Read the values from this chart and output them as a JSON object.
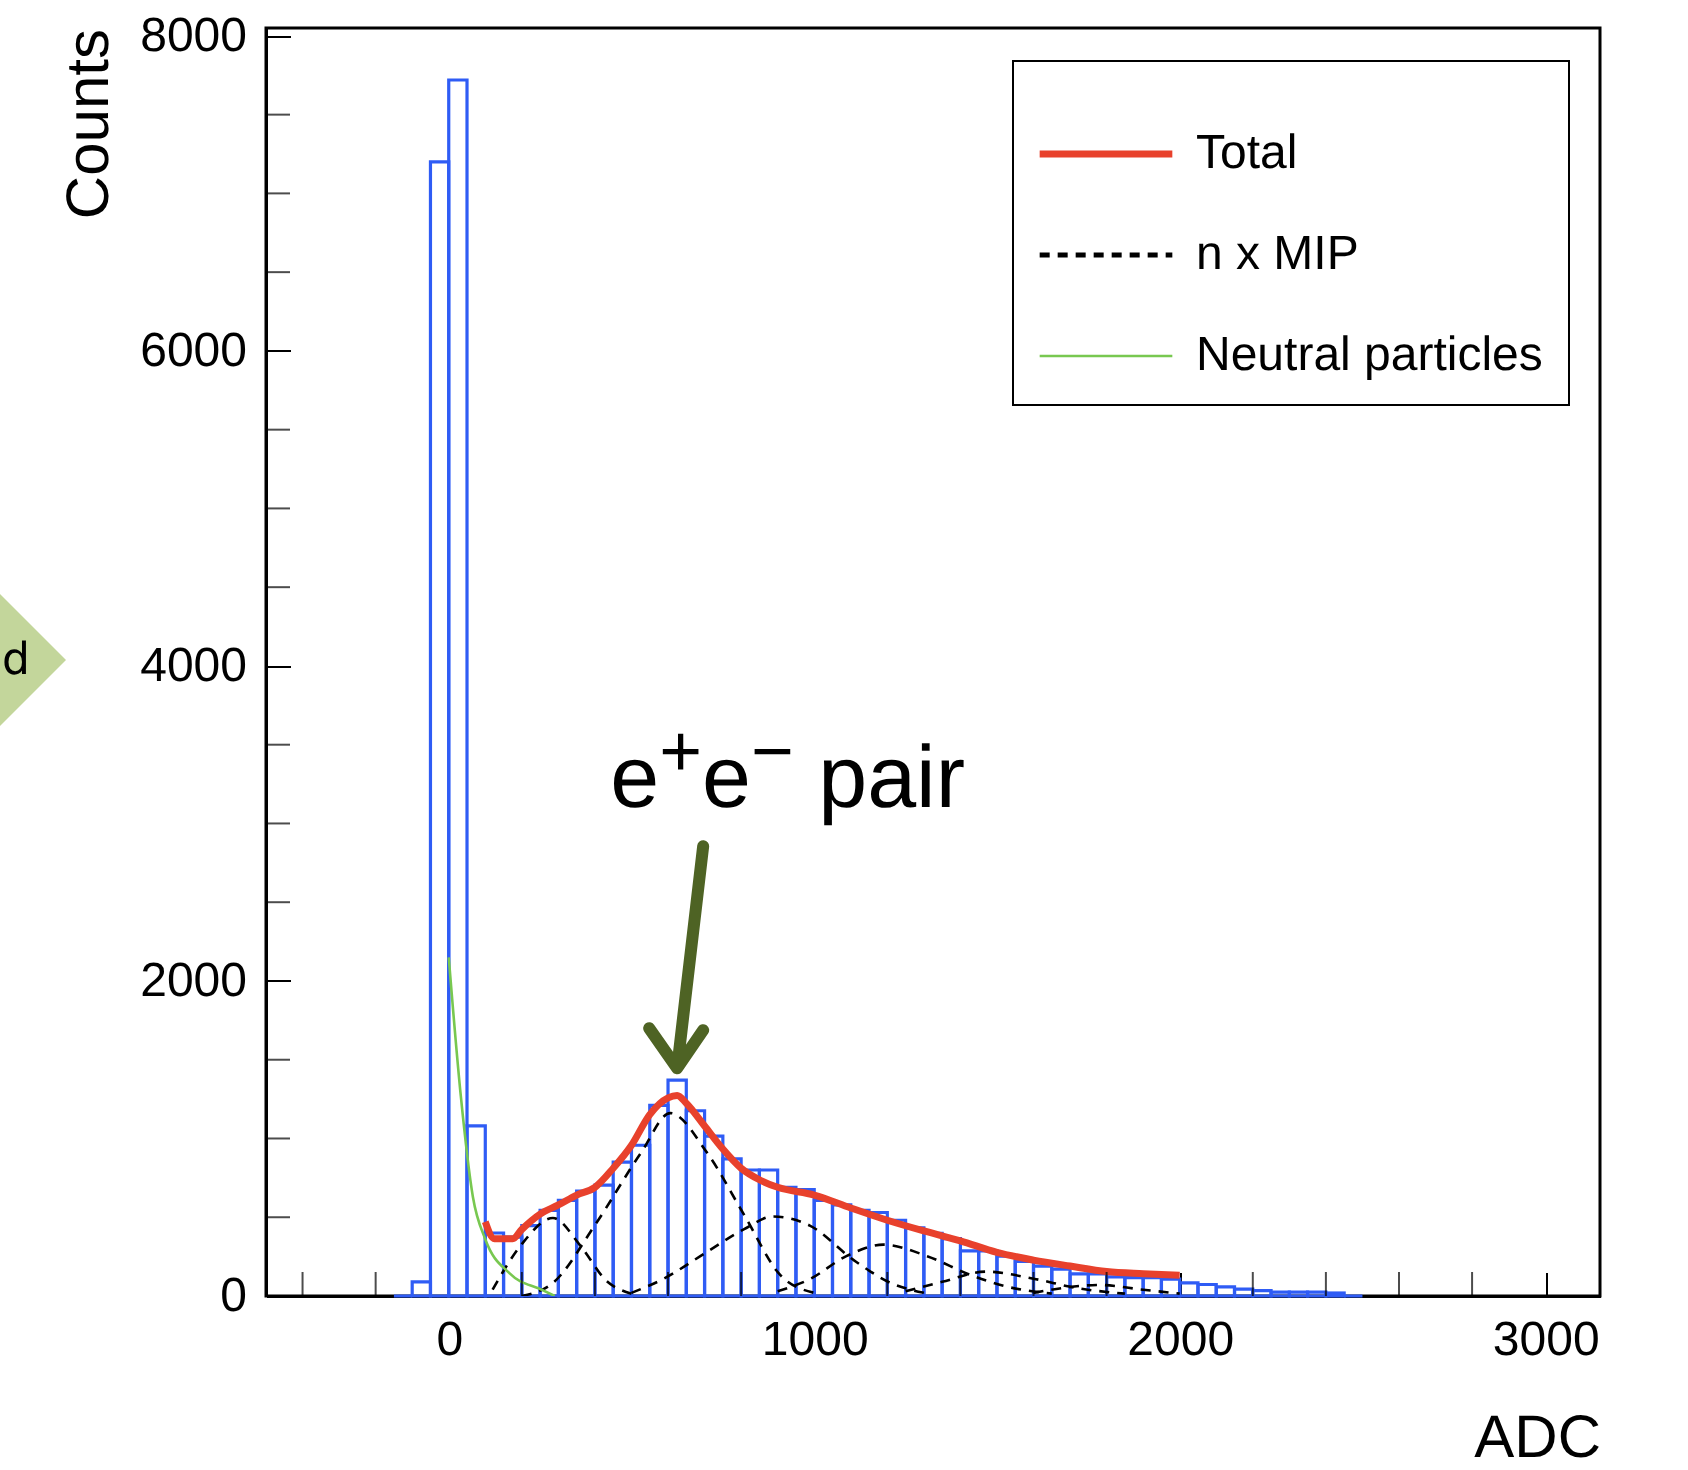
{
  "chart_data": {
    "type": "histogram",
    "xlabel": "ADC",
    "ylabel": "Counts",
    "bins": [
      -150,
      -100,
      -50,
      0,
      50,
      100,
      150,
      200,
      250,
      300,
      350,
      400,
      450,
      500,
      550,
      600,
      650,
      700,
      750,
      800,
      850,
      900,
      950,
      1000,
      1050,
      1100,
      1150,
      1200,
      1250,
      1300,
      1350,
      1400,
      1450,
      1500,
      1550,
      1600,
      1650,
      1700,
      1750,
      1800,
      1850,
      1900,
      1950,
      2000,
      2050,
      2100,
      2150,
      2200,
      2250,
      2300,
      2350,
      2400,
      2450,
      2500
    ],
    "values": [
      0,
      90,
      7200,
      7720,
      1080,
      400,
      374,
      447,
      544,
      607,
      666,
      704,
      850,
      957,
      1210,
      1370,
      1176,
      1015,
      870,
      800,
      800,
      690,
      675,
      607,
      578,
      544,
      530,
      481,
      432,
      398,
      364,
      287,
      287,
      253,
      219,
      190,
      170,
      141,
      141,
      121,
      117,
      117,
      107,
      83,
      73,
      58,
      44,
      34,
      24,
      24,
      24,
      19,
      0
    ],
    "color": "#2f5cf5",
    "series": [
      {
        "name": "Total",
        "type": "line",
        "color": "#e8412c",
        "x": [
          100,
          125,
          175,
          200,
          250,
          300,
          350,
          400,
          450,
          500,
          550,
          600,
          625,
          650,
          700,
          750,
          800,
          850,
          900,
          1000,
          1100,
          1200,
          1300,
          1400,
          1500,
          1600,
          1700,
          1800,
          1900,
          2000
        ],
        "values": [
          471,
          364,
          364,
          423,
          520,
          578,
          641,
          690,
          811,
          957,
          1152,
          1258,
          1273,
          1224,
          1079,
          933,
          811,
          738,
          690,
          641,
          559,
          481,
          413,
          350,
          277,
          228,
          190,
          155,
          141,
          131
        ]
      },
      {
        "name": "n x MIP",
        "type": "line",
        "line_style": "dashed",
        "color": "#000000",
        "x": [
          120,
          200,
          285,
          360,
          430,
          500
        ],
        "values": [
          40,
          330,
          495,
          320,
          100,
          15
        ]
      },
      {
        "type": "line",
        "line_style": "dashed",
        "color": "#000000",
        "x": [
          200,
          285,
          400,
          526,
          606,
          707,
          807,
          908,
          1000
        ],
        "values": [
          0,
          83,
          450,
          909,
          1161,
          909,
          520,
          131,
          20
        ]
      },
      {
        "type": "line",
        "line_style": "dashed",
        "color": "#000000",
        "x": [
          500,
          586,
          700,
          807,
          888,
          988,
          1108,
          1209,
          1300
        ],
        "values": [
          20,
          107,
          270,
          423,
          505,
          447,
          228,
          83,
          20
        ]
      },
      {
        "type": "line",
        "line_style": "dashed",
        "color": "#000000",
        "x": [
          900,
          988,
          1088,
          1189,
          1309,
          1430,
          1530,
          1650
        ],
        "values": [
          30,
          107,
          253,
          326,
          253,
          131,
          58,
          15
        ]
      },
      {
        "type": "line",
        "line_style": "dashed",
        "color": "#000000",
        "x": [
          1250,
          1350,
          1470,
          1600,
          1720,
          1850
        ],
        "values": [
          30,
          90,
          155,
          110,
          50,
          15
        ]
      },
      {
        "type": "line",
        "line_style": "dashed",
        "color": "#000000",
        "x": [
          1600,
          1780,
          1900,
          2000
        ],
        "values": [
          20,
          70,
          40,
          15
        ]
      },
      {
        "name": "Neutral particles",
        "type": "line",
        "color": "#78c850",
        "x": [
          0,
          33,
          66,
          100,
          166,
          254,
          290
        ],
        "values": [
          2150,
          1270,
          630,
          360,
          145,
          40,
          0
        ]
      }
    ],
    "xlim": [
      -500,
      3150
    ],
    "ylim": [
      0,
      8050
    ],
    "xticks": [
      {
        "value": -400,
        "label": null
      },
      {
        "value": -200,
        "label": null
      },
      0,
      {
        "value": 200,
        "label": null
      },
      {
        "value": 400,
        "label": null
      },
      {
        "value": 600,
        "label": null
      },
      {
        "value": 800,
        "label": null
      },
      1000,
      {
        "value": 1200,
        "label": null
      },
      {
        "value": 1400,
        "label": null
      },
      {
        "value": 1600,
        "label": null
      },
      {
        "value": 1800,
        "label": null
      },
      2000,
      {
        "value": 2200,
        "label": null
      },
      {
        "value": 2400,
        "label": null
      },
      {
        "value": 2600,
        "label": null
      },
      {
        "value": 2800,
        "label": null
      },
      3000
    ],
    "yticks": [
      0,
      {
        "value": 500,
        "label": null
      },
      {
        "value": 1000,
        "label": null
      },
      {
        "value": 1500,
        "label": null
      },
      2000,
      {
        "value": 2500,
        "label": null
      },
      {
        "value": 3000,
        "label": null
      },
      {
        "value": 3500,
        "label": null
      },
      4000,
      {
        "value": 4500,
        "label": null
      },
      {
        "value": 5000,
        "label": null
      },
      {
        "value": 5500,
        "label": null
      },
      6000,
      {
        "value": 6500,
        "label": null
      },
      {
        "value": 7000,
        "label": null
      },
      {
        "value": 7500,
        "label": null
      },
      8000
    ],
    "legend": "top right",
    "grid": false,
    "annotations": [
      "d",
      {
        "text": "e$^{+}$e$^{−}$ pair",
        "x": 625,
        "y": 1370
      }
    ]
  }
}
